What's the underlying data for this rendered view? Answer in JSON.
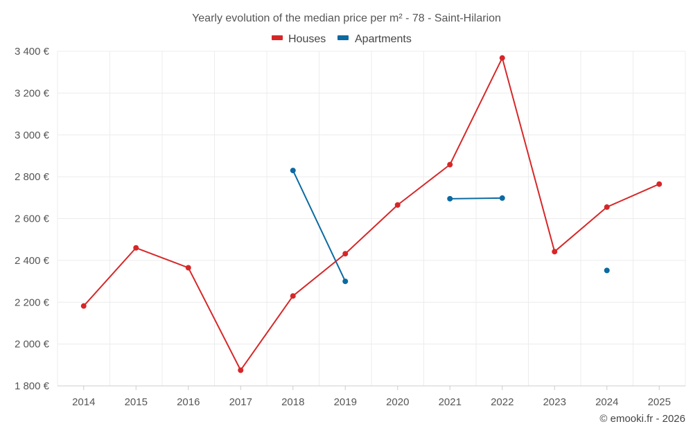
{
  "chart_data": {
    "type": "line",
    "title": "Yearly evolution of the median price per m² - 78 - Saint-Hilarion",
    "categories": [
      "2014",
      "2015",
      "2016",
      "2017",
      "2018",
      "2019",
      "2020",
      "2021",
      "2022",
      "2023",
      "2024",
      "2025"
    ],
    "series": [
      {
        "name": "Houses",
        "color": "#d62728",
        "values": [
          2182,
          2460,
          2365,
          1875,
          2230,
          2432,
          2665,
          2858,
          3368,
          2442,
          2655,
          2765
        ]
      },
      {
        "name": "Apartments",
        "color": "#0a6aa1",
        "values": [
          null,
          null,
          null,
          null,
          2830,
          2300,
          null,
          2695,
          2698,
          null,
          2352,
          null
        ]
      }
    ],
    "y_ticks": [
      "1 800 €",
      "2 000 €",
      "2 200 €",
      "2 400 €",
      "2 600 €",
      "2 800 €",
      "3 000 €",
      "3 200 €",
      "3 400 €"
    ],
    "y_tick_values": [
      1800,
      2000,
      2200,
      2400,
      2600,
      2800,
      3000,
      3200,
      3400
    ],
    "ylim": [
      1800,
      3400
    ],
    "xlabel": "",
    "ylabel": "",
    "grid": true,
    "legend_position": "top-center",
    "credit": "© emooki.fr - 2026"
  }
}
